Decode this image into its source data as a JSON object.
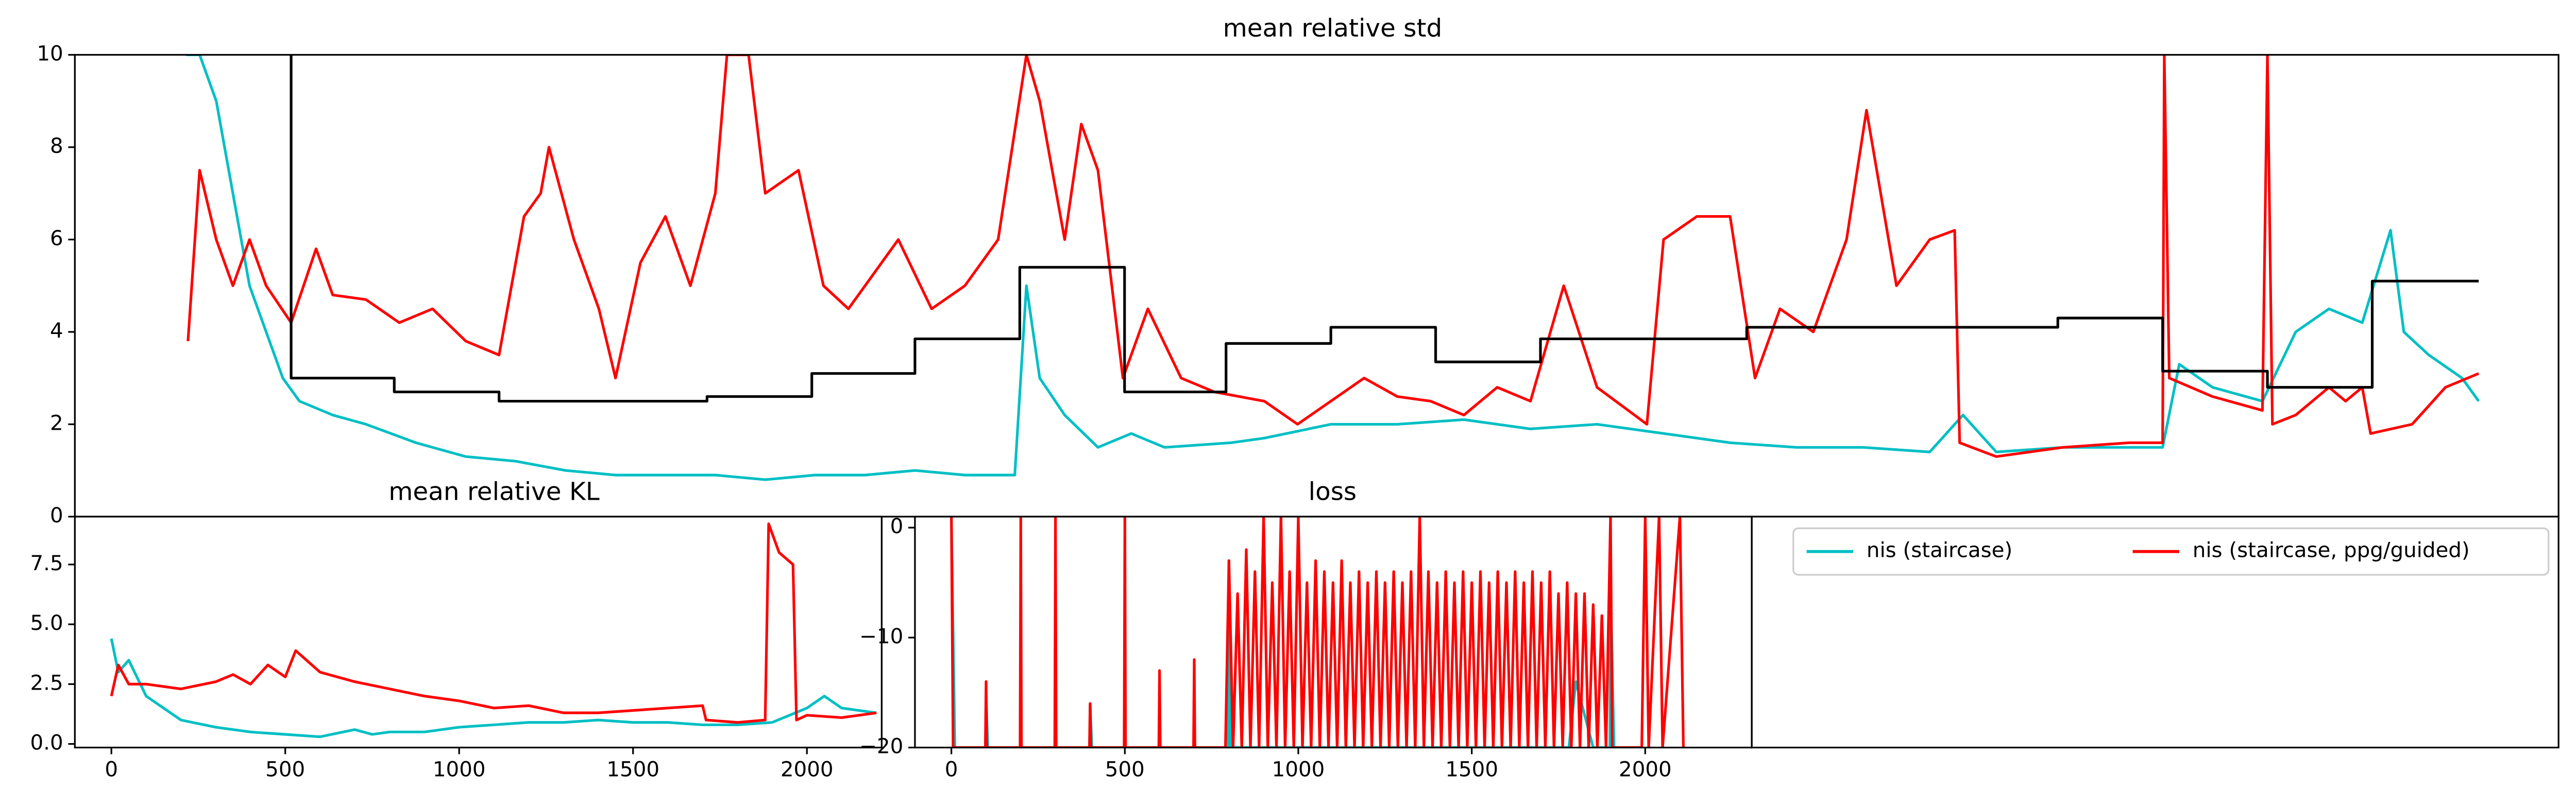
{
  "chart_data": [
    {
      "type": "line",
      "title": "mean relative std",
      "xlim": [
        0,
        1493
      ],
      "ylim": [
        0,
        10
      ],
      "yticks": [
        0,
        2,
        4,
        6,
        8,
        10
      ],
      "series": [
        {
          "name": "nis (staircase)",
          "color": "#00bfc4",
          "x": [
            67,
            75,
            85,
            95,
            105,
            115,
            125,
            135,
            155,
            175,
            205,
            235,
            265,
            295,
            325,
            355,
            385,
            415,
            445,
            475,
            505,
            535,
            565,
            572,
            580,
            595,
            615,
            635,
            655,
            695,
            715,
            755,
            795,
            835,
            875,
            915,
            955,
            995,
            1035,
            1075,
            1115,
            1135,
            1155,
            1195,
            1235,
            1255,
            1265,
            1285,
            1315,
            1335,
            1355,
            1375,
            1392,
            1400,
            1415,
            1435,
            1445
          ],
          "values": [
            10,
            10,
            9,
            7,
            5,
            4,
            3,
            2.5,
            2.2,
            2,
            1.6,
            1.3,
            1.2,
            1.0,
            0.9,
            0.9,
            0.9,
            0.8,
            0.9,
            0.9,
            1.0,
            0.9,
            0.9,
            5.0,
            3.0,
            2.2,
            1.5,
            1.8,
            1.5,
            1.6,
            1.7,
            2.0,
            2.0,
            2.1,
            1.9,
            2.0,
            1.8,
            1.6,
            1.5,
            1.5,
            1.4,
            2.2,
            1.4,
            1.5,
            1.5,
            1.5,
            3.3,
            2.8,
            2.5,
            4.0,
            4.5,
            4.2,
            6.2,
            4.0,
            3.5,
            3.0,
            2.5
          ]
        },
        {
          "name": "nis (staircase, ppg/guided)",
          "color": "#ff0000",
          "x": [
            68,
            75,
            85,
            95,
            105,
            115,
            130,
            145,
            155,
            175,
            195,
            215,
            235,
            255,
            270,
            280,
            285,
            300,
            315,
            325,
            340,
            355,
            370,
            385,
            392,
            405,
            415,
            435,
            450,
            465,
            475,
            495,
            515,
            535,
            555,
            572,
            580,
            595,
            605,
            615,
            630,
            645,
            665,
            685,
            715,
            735,
            755,
            775,
            795,
            815,
            835,
            855,
            875,
            895,
            915,
            945,
            955,
            975,
            995,
            1010,
            1025,
            1045,
            1065,
            1077,
            1095,
            1115,
            1130,
            1133,
            1155,
            1195,
            1235,
            1255,
            1256,
            1259,
            1285,
            1315,
            1318,
            1321,
            1335,
            1355,
            1365,
            1375,
            1380,
            1405,
            1425,
            1445
          ],
          "values": [
            3.8,
            7.5,
            6,
            5,
            6,
            5,
            4.2,
            5.8,
            4.8,
            4.7,
            4.2,
            4.5,
            3.8,
            3.5,
            6.5,
            7.0,
            8.0,
            6.0,
            4.5,
            3.0,
            5.5,
            6.5,
            5.0,
            7.0,
            10,
            10,
            7.0,
            7.5,
            5.0,
            4.5,
            5.0,
            6.0,
            4.5,
            5.0,
            6.0,
            10,
            9.0,
            6.0,
            8.5,
            7.5,
            3.0,
            4.5,
            3.0,
            2.7,
            2.5,
            2.0,
            2.5,
            3.0,
            2.6,
            2.5,
            2.2,
            2.8,
            2.5,
            5.0,
            2.8,
            2.0,
            6.0,
            6.5,
            6.5,
            3.0,
            4.5,
            4.0,
            6.0,
            8.8,
            5.0,
            6.0,
            6.2,
            1.6,
            1.3,
            1.5,
            1.6,
            1.6,
            10,
            3.0,
            2.6,
            2.3,
            10,
            2.0,
            2.2,
            2.8,
            2.5,
            2.8,
            1.8,
            2.0,
            2.8,
            3.1
          ]
        },
        {
          "color": "#000000",
          "x": [
            130,
            130,
            192,
            192,
            255,
            255,
            380,
            380,
            443,
            443,
            505,
            505,
            568,
            568,
            631,
            631,
            692,
            692,
            755,
            755,
            818,
            818,
            881,
            881,
            1005,
            1005,
            1192,
            1192,
            1255,
            1255,
            1318,
            1318,
            1381,
            1381,
            1445
          ],
          "values": [
            10,
            3.0,
            3.0,
            2.7,
            2.7,
            2.5,
            2.5,
            2.6,
            2.6,
            3.1,
            3.1,
            3.85,
            3.85,
            5.4,
            5.4,
            2.7,
            2.7,
            3.75,
            3.75,
            4.1,
            4.1,
            3.35,
            3.35,
            3.85,
            3.85,
            4.1,
            4.1,
            4.3,
            4.3,
            3.15,
            3.15,
            2.8,
            2.8,
            5.1,
            5.1
          ]
        }
      ]
    },
    {
      "type": "line",
      "title": "mean relative KL",
      "xlim": [
        -105,
        2215
      ],
      "ylim": [
        -0.15,
        9.5
      ],
      "xticks": [
        0,
        500,
        1000,
        1500,
        2000
      ],
      "yticks": [
        {
          "value": 0,
          "label": "0.0"
        },
        {
          "value": 2.5,
          "label": "2.5"
        },
        {
          "value": 5,
          "label": "5.0"
        },
        {
          "value": 7.5,
          "label": "7.5"
        }
      ],
      "series": [
        {
          "color": "#00bfc4",
          "x": [
            0,
            20,
            50,
            100,
            150,
            200,
            300,
            400,
            500,
            600,
            700,
            750,
            800,
            900,
            1000,
            1100,
            1200,
            1300,
            1400,
            1500,
            1600,
            1700,
            1800,
            1900,
            2000,
            2050,
            2100,
            2200
          ],
          "values": [
            4.4,
            3.0,
            3.5,
            2.0,
            1.5,
            1.0,
            0.7,
            0.5,
            0.4,
            0.3,
            0.6,
            0.4,
            0.5,
            0.5,
            0.7,
            0.8,
            0.9,
            0.9,
            1.0,
            0.9,
            0.9,
            0.8,
            0.8,
            0.9,
            1.5,
            2.0,
            1.5,
            1.3
          ]
        },
        {
          "color": "#ff0000",
          "x": [
            0,
            20,
            50,
            100,
            200,
            300,
            350,
            400,
            450,
            500,
            530,
            600,
            700,
            800,
            900,
            1000,
            1100,
            1200,
            1300,
            1400,
            1500,
            1600,
            1700,
            1710,
            1800,
            1880,
            1890,
            1920,
            1960,
            1970,
            2000,
            2100,
            2200
          ],
          "values": [
            2.0,
            3.3,
            2.5,
            2.5,
            2.3,
            2.6,
            2.9,
            2.5,
            3.3,
            2.8,
            3.9,
            3.0,
            2.6,
            2.3,
            2.0,
            1.8,
            1.5,
            1.6,
            1.3,
            1.3,
            1.4,
            1.5,
            1.6,
            1.0,
            0.9,
            1.0,
            9.2,
            8.0,
            7.5,
            1.0,
            1.2,
            1.1,
            1.3
          ]
        }
      ]
    },
    {
      "type": "line",
      "title": "loss",
      "xlim": [
        -105,
        2307
      ],
      "ylim": [
        -20,
        1
      ],
      "xticks": [
        0,
        500,
        1000,
        1500,
        2000
      ],
      "yticks": [
        0,
        {
          "value": -10,
          "label": "−10"
        },
        {
          "value": -20,
          "label": "−20"
        }
      ],
      "series": [
        {
          "color": "#00bfc4",
          "x": [
            0,
            10,
            98,
            100,
            105,
            398,
            400,
            405,
            798,
            800,
            805,
            1780,
            1800,
            1850,
            1898,
            1900,
            1910
          ],
          "values": [
            1,
            -20,
            -20,
            -15,
            -20,
            -20,
            -16,
            -20,
            -20,
            -3,
            -20,
            -20,
            -14,
            -20,
            -20,
            -5,
            -20
          ]
        },
        {
          "color": "#ff0000",
          "x": [
            0,
            5,
            98,
            100,
            102,
            198,
            200,
            202,
            298,
            300,
            302,
            398,
            400,
            402,
            498,
            500,
            502,
            598,
            600,
            602,
            698,
            700,
            702,
            790,
            800,
            812,
            825,
            837,
            850,
            862,
            875,
            887,
            900,
            912,
            925,
            937,
            950,
            962,
            975,
            987,
            1000,
            1012,
            1025,
            1037,
            1050,
            1062,
            1075,
            1087,
            1100,
            1112,
            1125,
            1137,
            1150,
            1162,
            1175,
            1187,
            1200,
            1212,
            1225,
            1237,
            1250,
            1262,
            1275,
            1287,
            1300,
            1312,
            1325,
            1337,
            1350,
            1362,
            1375,
            1387,
            1400,
            1412,
            1425,
            1437,
            1450,
            1462,
            1475,
            1487,
            1500,
            1512,
            1525,
            1537,
            1550,
            1562,
            1575,
            1587,
            1600,
            1612,
            1625,
            1637,
            1650,
            1662,
            1675,
            1687,
            1700,
            1712,
            1725,
            1737,
            1750,
            1762,
            1775,
            1787,
            1800,
            1812,
            1825,
            1837,
            1850,
            1862,
            1875,
            1887,
            1900,
            1905,
            1990,
            2000,
            2010,
            2040,
            2050,
            2100,
            2110
          ],
          "values": [
            1,
            -20,
            -20,
            -14,
            -20,
            -20,
            1,
            -20,
            -20,
            1,
            -20,
            -20,
            -16,
            -20,
            -20,
            1,
            -20,
            -20,
            -13,
            -20,
            -20,
            -12,
            -20,
            -20,
            -3,
            -20,
            -6,
            -20,
            -2,
            -20,
            -4,
            -20,
            1,
            -20,
            -5,
            -20,
            1,
            -20,
            -4,
            -20,
            1,
            -20,
            -5,
            -20,
            -3,
            -20,
            -4,
            -20,
            -5,
            -20,
            -3,
            -20,
            -5,
            -20,
            -4,
            -20,
            -5,
            -20,
            -4,
            -20,
            -5,
            -20,
            -4,
            -20,
            -5,
            -20,
            -4,
            -20,
            1,
            -20,
            -4,
            -20,
            -5,
            -20,
            -4,
            -20,
            -5,
            -20,
            -4,
            -20,
            -5,
            -20,
            -4,
            -20,
            -5,
            -20,
            -4,
            -20,
            -5,
            -20,
            -4,
            -20,
            -5,
            -20,
            -4,
            -20,
            -5,
            -20,
            -4,
            -20,
            -6,
            -20,
            -5,
            -20,
            -6,
            -20,
            -6,
            -20,
            -7,
            -20,
            -8,
            -20,
            1,
            -20,
            -20,
            1,
            -20,
            1,
            -20,
            1,
            -20
          ]
        }
      ]
    },
    {
      "type": "legend",
      "legend": "upper right"
    }
  ]
}
